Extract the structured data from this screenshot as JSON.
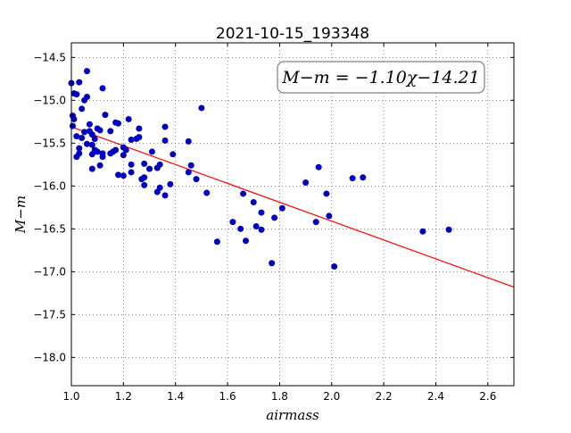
{
  "chart_data": {
    "type": "scatter",
    "title": "2021-10-15_193348",
    "xlabel": "airmass",
    "ylabel": "M−m",
    "xlim": [
      1.0,
      2.7
    ],
    "ylim": [
      -18.33,
      -14.33
    ],
    "y_inverted": true,
    "grid": true,
    "x_ticks": [
      1.0,
      1.2,
      1.4,
      1.6,
      1.8,
      2.0,
      2.2,
      2.4,
      2.6
    ],
    "x_tick_labels": [
      "1.0",
      "1.2",
      "1.4",
      "1.6",
      "1.8",
      "2.0",
      "2.2",
      "2.4",
      "2.6"
    ],
    "y_ticks": [
      -14.5,
      -15.0,
      -15.5,
      -16.0,
      -16.5,
      -17.0,
      -17.5,
      -18.0
    ],
    "y_tick_labels": [
      "−14.5",
      "−15.0",
      "−15.5",
      "−16.0",
      "−16.5",
      "−17.0",
      "−17.5",
      "−18.0"
    ],
    "annotation": "M−m = −1.10χ−14.21",
    "annotation_position": "top-right",
    "point_color": "#0000bf",
    "fit_color": "#ff0000",
    "fit": {
      "slope": -1.1,
      "intercept": -14.21
    },
    "points": [
      [
        1.0,
        -14.8
      ],
      [
        1.01,
        -14.92
      ],
      [
        1.005,
        -15.18
      ],
      [
        1.01,
        -15.22
      ],
      [
        1.005,
        -15.3
      ],
      [
        1.02,
        -14.93
      ],
      [
        1.03,
        -14.79
      ],
      [
        1.06,
        -14.66
      ],
      [
        1.05,
        -15.0
      ],
      [
        1.06,
        -14.96
      ],
      [
        1.04,
        -15.1
      ],
      [
        1.02,
        -15.42
      ],
      [
        1.04,
        -15.44
      ],
      [
        1.05,
        -15.37
      ],
      [
        1.07,
        -15.36
      ],
      [
        1.08,
        -15.4
      ],
      [
        1.09,
        -15.45
      ],
      [
        1.07,
        -15.28
      ],
      [
        1.1,
        -15.33
      ],
      [
        1.11,
        -15.35
      ],
      [
        1.06,
        -15.51
      ],
      [
        1.03,
        -15.56
      ],
      [
        1.03,
        -15.62
      ],
      [
        1.02,
        -15.66
      ],
      [
        1.08,
        -15.52
      ],
      [
        1.09,
        -15.58
      ],
      [
        1.08,
        -15.63
      ],
      [
        1.1,
        -15.6
      ],
      [
        1.12,
        -15.62
      ],
      [
        1.12,
        -15.66
      ],
      [
        1.11,
        -15.76
      ],
      [
        1.08,
        -15.8
      ],
      [
        1.12,
        -14.86
      ],
      [
        1.13,
        -15.17
      ],
      [
        1.15,
        -15.36
      ],
      [
        1.17,
        -15.26
      ],
      [
        1.18,
        -15.27
      ],
      [
        1.16,
        -15.6
      ],
      [
        1.15,
        -15.62
      ],
      [
        1.17,
        -15.58
      ],
      [
        1.2,
        -15.55
      ],
      [
        1.21,
        -15.58
      ],
      [
        1.22,
        -15.22
      ],
      [
        1.23,
        -15.46
      ],
      [
        1.26,
        -15.33
      ],
      [
        1.26,
        -15.43
      ],
      [
        1.25,
        -15.45
      ],
      [
        1.2,
        -15.64
      ],
      [
        1.18,
        -15.87
      ],
      [
        1.2,
        -15.88
      ],
      [
        1.23,
        -15.75
      ],
      [
        1.23,
        -15.84
      ],
      [
        1.28,
        -15.74
      ],
      [
        1.27,
        -15.92
      ],
      [
        1.28,
        -15.9
      ],
      [
        1.28,
        -15.99
      ],
      [
        1.31,
        -15.6
      ],
      [
        1.3,
        -15.8
      ],
      [
        1.33,
        -15.79
      ],
      [
        1.34,
        -15.75
      ],
      [
        1.34,
        -16.02
      ],
      [
        1.33,
        -16.07
      ],
      [
        1.36,
        -15.31
      ],
      [
        1.36,
        -15.47
      ],
      [
        1.38,
        -15.98
      ],
      [
        1.36,
        -16.11
      ],
      [
        1.39,
        -15.63
      ],
      [
        1.45,
        -15.48
      ],
      [
        1.46,
        -15.76
      ],
      [
        1.45,
        -15.84
      ],
      [
        1.48,
        -15.92
      ],
      [
        1.5,
        -15.09
      ],
      [
        1.52,
        -16.08
      ],
      [
        1.56,
        -16.65
      ],
      [
        1.62,
        -16.42
      ],
      [
        1.66,
        -16.09
      ],
      [
        1.65,
        -16.5
      ],
      [
        1.67,
        -16.64
      ],
      [
        1.7,
        -16.19
      ],
      [
        1.71,
        -16.47
      ],
      [
        1.73,
        -16.31
      ],
      [
        1.73,
        -16.51
      ],
      [
        1.77,
        -16.9
      ],
      [
        1.78,
        -16.37
      ],
      [
        1.81,
        -16.26
      ],
      [
        1.9,
        -15.96
      ],
      [
        1.94,
        -16.42
      ],
      [
        1.95,
        -15.78
      ],
      [
        1.98,
        -16.09
      ],
      [
        1.99,
        -16.35
      ],
      [
        2.01,
        -16.94
      ],
      [
        2.08,
        -15.91
      ],
      [
        2.12,
        -15.9
      ],
      [
        2.35,
        -16.53
      ],
      [
        2.45,
        -16.51
      ]
    ]
  }
}
